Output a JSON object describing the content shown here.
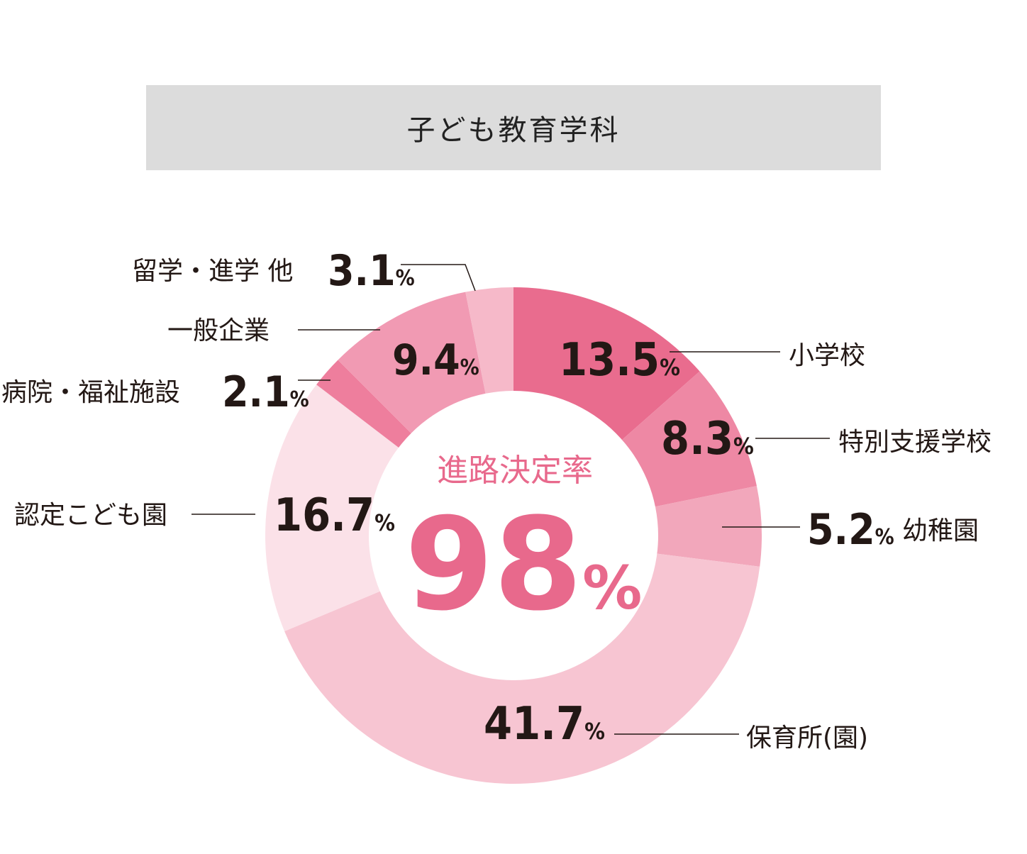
{
  "header": {
    "title": "子ども教育学科"
  },
  "center": {
    "label": "進路決定率",
    "value": "98",
    "unit": "%"
  },
  "chart_data": {
    "type": "pie",
    "title": "子ども教育学科",
    "series": [
      {
        "name": "小学校",
        "value": 13.5,
        "color": "#e96c8e"
      },
      {
        "name": "特別支援学校",
        "value": 8.3,
        "color": "#ee88a4"
      },
      {
        "name": "幼稚園",
        "value": 5.2,
        "color": "#f2a7bb"
      },
      {
        "name": "保育所(園)",
        "value": 41.7,
        "color": "#f7c5d2"
      },
      {
        "name": "認定こども園",
        "value": 16.7,
        "color": "#fbe1e8"
      },
      {
        "name": "病院・福祉施設",
        "value": 2.1,
        "color": "#ee7e9d"
      },
      {
        "name": "一般企業",
        "value": 9.4,
        "color": "#f19ab3"
      },
      {
        "name": "留学・進学 他",
        "value": 3.1,
        "color": "#f6b9c9"
      }
    ],
    "value_labels": [
      "13.5",
      "8.3",
      "5.2",
      "41.7",
      "16.7",
      "2.1",
      "9.4",
      "3.1"
    ],
    "unit": "%",
    "center_text": "進路決定率 98%"
  }
}
